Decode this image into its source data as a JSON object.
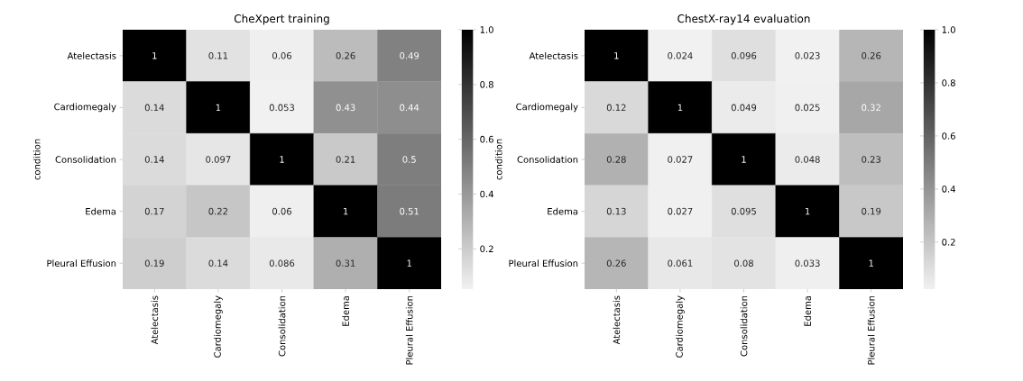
{
  "chart_data": [
    {
      "type": "heatmap",
      "title": "CheXpert training",
      "ylabel": "condition",
      "categories": [
        "Atelectasis",
        "Cardiomegaly",
        "Consolidation",
        "Edema",
        "Pleural Effusion"
      ],
      "y_categories": [
        "Atelectasis",
        "Cardiomegaly",
        "Consolidation",
        "Edema",
        "Pleural Effusion"
      ],
      "cells": [
        [
          1,
          0.11,
          0.06,
          0.26,
          0.49
        ],
        [
          0.14,
          1,
          0.053,
          0.43,
          0.44
        ],
        [
          0.14,
          0.097,
          1,
          0.21,
          0.5
        ],
        [
          0.17,
          0.22,
          0.06,
          1,
          0.51
        ],
        [
          0.19,
          0.14,
          0.086,
          0.31,
          1
        ]
      ],
      "clim": [
        0.053,
        1
      ],
      "cticks": [
        0.2,
        0.4,
        0.6,
        0.8,
        {
          "value": 1,
          "label": "1.0"
        }
      ],
      "data_labels": true
    },
    {
      "type": "heatmap",
      "title": "ChestX-ray14 evaluation",
      "ylabel": "condition",
      "categories": [
        "Atelectasis",
        "Cardiomegaly",
        "Consolidation",
        "Edema",
        "Pleural Effusion"
      ],
      "y_categories": [
        "Atelectasis",
        "Cardiomegaly",
        "Consolidation",
        "Edema",
        "Pleural Effusion"
      ],
      "cells": [
        [
          1,
          0.024,
          0.096,
          0.023,
          0.26
        ],
        [
          0.12,
          1,
          0.049,
          0.025,
          0.32
        ],
        [
          0.28,
          0.027,
          1,
          0.048,
          0.23
        ],
        [
          0.13,
          0.027,
          0.095,
          1,
          0.19
        ],
        [
          0.26,
          0.061,
          0.08,
          0.033,
          1
        ]
      ],
      "clim": [
        0.023,
        1
      ],
      "cticks": [
        0.2,
        0.4,
        0.6,
        0.8,
        {
          "value": 1,
          "label": "1.0"
        }
      ],
      "data_labels": true
    }
  ]
}
